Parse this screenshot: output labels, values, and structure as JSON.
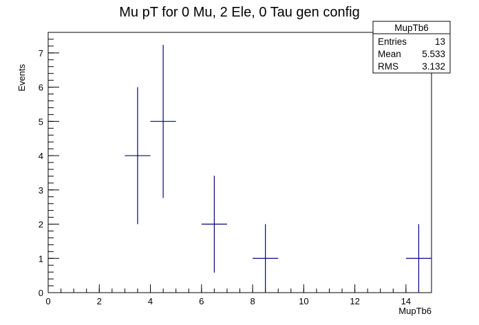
{
  "chart_data": {
    "type": "histogram",
    "title": "Mu pT for 0 Mu, 2 Ele, 0 Tau gen config",
    "xlabel": "MupTb6",
    "ylabel": "Events",
    "xlim": [
      0,
      15
    ],
    "ylim": [
      0,
      7.6
    ],
    "xticks": [
      0,
      2,
      4,
      6,
      8,
      10,
      12,
      14
    ],
    "yticks": [
      0,
      1,
      2,
      3,
      4,
      5,
      6,
      7
    ],
    "bin_width": 1,
    "series": [
      {
        "points": [
          {
            "x": 3.5,
            "y": 4,
            "yerr": 2
          },
          {
            "x": 4.5,
            "y": 5,
            "yerr": 2.236
          },
          {
            "x": 6.5,
            "y": 2,
            "yerr": 1.414
          },
          {
            "x": 8.5,
            "y": 1,
            "yerr": 1
          },
          {
            "x": 14.5,
            "y": 1,
            "yerr": 1
          }
        ],
        "color": "#000080"
      }
    ],
    "stats": {
      "name": "MupTb6",
      "rows": [
        {
          "label": "Entries",
          "value": "13"
        },
        {
          "label": "Mean",
          "value": "5.533"
        },
        {
          "label": "RMS",
          "value": "3.132"
        }
      ]
    }
  }
}
